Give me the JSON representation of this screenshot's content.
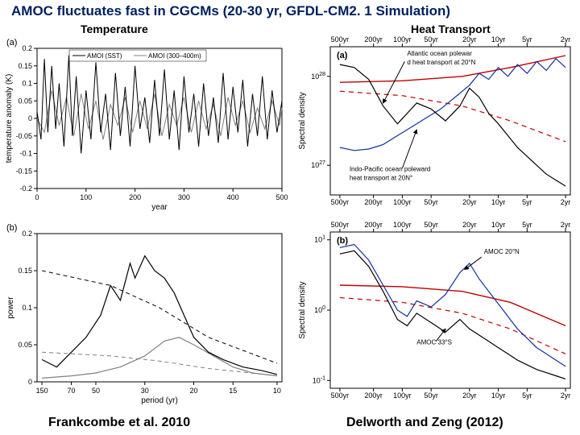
{
  "title": "AMOC fluctuates fast in CGCMs (20-30 yr, GFDL-CM2. 1 Simulation)",
  "subtitles": {
    "left": "Temperature",
    "right": "Heat Transport"
  },
  "citations": {
    "left": "Frankcombe et al. 2010",
    "right": "Delworth and Zeng (2012)"
  },
  "colors": {
    "title": "#002060",
    "axis": "#000000",
    "grid": "#cccccc",
    "black_line": "#000000",
    "gray_line": "#808080",
    "blue_line": "#1030a0",
    "red_line": "#c00000",
    "red_dash": "#c00000",
    "bg": "#ffffff"
  },
  "panel_a_tl": {
    "letter": "(a)",
    "xlabel": "year",
    "ylabel": "temperature anomaly (K)",
    "xlim": [
      0,
      500
    ],
    "xtick_step": 100,
    "ylim": [
      -0.2,
      0.2
    ],
    "yticks": [
      -0.2,
      -0.15,
      -0.1,
      -0.05,
      0,
      0.05,
      0.1,
      0.15,
      0.2
    ],
    "legend": [
      "AMOI (SST)",
      "AMOI (300–400m)"
    ],
    "series_black": [
      [
        0,
        0.02
      ],
      [
        8,
        -0.06
      ],
      [
        15,
        0.17
      ],
      [
        22,
        -0.04
      ],
      [
        30,
        0.15
      ],
      [
        38,
        -0.03
      ],
      [
        45,
        0.1
      ],
      [
        55,
        -0.08
      ],
      [
        65,
        0.18
      ],
      [
        72,
        -0.05
      ],
      [
        80,
        0.12
      ],
      [
        90,
        -0.1
      ],
      [
        100,
        0.08
      ],
      [
        110,
        -0.06
      ],
      [
        120,
        0.16
      ],
      [
        130,
        -0.04
      ],
      [
        140,
        0.07
      ],
      [
        150,
        -0.09
      ],
      [
        160,
        0.13
      ],
      [
        170,
        -0.05
      ],
      [
        180,
        0.09
      ],
      [
        190,
        -0.08
      ],
      [
        200,
        0.15
      ],
      [
        210,
        -0.03
      ],
      [
        220,
        0.06
      ],
      [
        230,
        -0.07
      ],
      [
        240,
        0.11
      ],
      [
        250,
        -0.05
      ],
      [
        260,
        0.14
      ],
      [
        270,
        -0.06
      ],
      [
        280,
        0.08
      ],
      [
        290,
        -0.09
      ],
      [
        300,
        0.12
      ],
      [
        310,
        -0.04
      ],
      [
        320,
        0.07
      ],
      [
        330,
        -0.08
      ],
      [
        340,
        0.1
      ],
      [
        350,
        -0.05
      ],
      [
        360,
        0.06
      ],
      [
        370,
        -0.07
      ],
      [
        380,
        0.13
      ],
      [
        390,
        -0.06
      ],
      [
        400,
        0.09
      ],
      [
        410,
        -0.04
      ],
      [
        420,
        0.11
      ],
      [
        430,
        -0.08
      ],
      [
        440,
        0.07
      ],
      [
        450,
        -0.05
      ],
      [
        460,
        0.12
      ],
      [
        470,
        -0.06
      ],
      [
        480,
        0.08
      ],
      [
        490,
        -0.04
      ],
      [
        500,
        0.05
      ]
    ],
    "series_gray": [
      [
        0,
        0.0
      ],
      [
        15,
        -0.04
      ],
      [
        30,
        0.08
      ],
      [
        45,
        -0.02
      ],
      [
        60,
        0.06
      ],
      [
        75,
        -0.05
      ],
      [
        90,
        0.07
      ],
      [
        105,
        -0.03
      ],
      [
        120,
        0.05
      ],
      [
        135,
        -0.06
      ],
      [
        150,
        0.04
      ],
      [
        165,
        -0.02
      ],
      [
        180,
        0.06
      ],
      [
        195,
        -0.04
      ],
      [
        210,
        0.05
      ],
      [
        225,
        -0.03
      ],
      [
        240,
        0.07
      ],
      [
        255,
        -0.05
      ],
      [
        270,
        0.04
      ],
      [
        285,
        -0.02
      ],
      [
        300,
        0.06
      ],
      [
        315,
        -0.04
      ],
      [
        330,
        0.05
      ],
      [
        345,
        -0.03
      ],
      [
        360,
        0.04
      ],
      [
        375,
        -0.05
      ],
      [
        390,
        0.06
      ],
      [
        405,
        -0.02
      ],
      [
        420,
        0.05
      ],
      [
        435,
        -0.04
      ],
      [
        450,
        0.03
      ],
      [
        465,
        -0.03
      ],
      [
        480,
        0.05
      ],
      [
        495,
        -0.02
      ],
      [
        500,
        0.03
      ]
    ]
  },
  "panel_b_bl": {
    "letter": "(b)",
    "xlabel": "period (yr)",
    "ylabel": "power",
    "xticks_pos": [
      0.02,
      0.14,
      0.24,
      0.44,
      0.64,
      0.8,
      0.98
    ],
    "xticks_lab": [
      "150",
      "70",
      "50",
      "30",
      "20",
      "15",
      "10"
    ],
    "ylim": [
      0,
      0.2
    ],
    "ytick_step": 0.05,
    "series_black": [
      [
        0.02,
        0.03
      ],
      [
        0.08,
        0.02
      ],
      [
        0.14,
        0.04
      ],
      [
        0.2,
        0.06
      ],
      [
        0.26,
        0.09
      ],
      [
        0.3,
        0.13
      ],
      [
        0.34,
        0.11
      ],
      [
        0.38,
        0.16
      ],
      [
        0.4,
        0.14
      ],
      [
        0.44,
        0.17
      ],
      [
        0.48,
        0.15
      ],
      [
        0.52,
        0.14
      ],
      [
        0.56,
        0.12
      ],
      [
        0.6,
        0.09
      ],
      [
        0.64,
        0.06
      ],
      [
        0.7,
        0.04
      ],
      [
        0.76,
        0.03
      ],
      [
        0.84,
        0.02
      ],
      [
        0.92,
        0.015
      ],
      [
        0.98,
        0.01
      ]
    ],
    "series_gray": [
      [
        0.02,
        0.005
      ],
      [
        0.14,
        0.008
      ],
      [
        0.24,
        0.012
      ],
      [
        0.34,
        0.02
      ],
      [
        0.44,
        0.035
      ],
      [
        0.52,
        0.055
      ],
      [
        0.58,
        0.06
      ],
      [
        0.64,
        0.05
      ],
      [
        0.72,
        0.035
      ],
      [
        0.8,
        0.02
      ],
      [
        0.88,
        0.012
      ],
      [
        0.98,
        0.008
      ]
    ],
    "dash_black": [
      [
        0.02,
        0.15
      ],
      [
        0.3,
        0.13
      ],
      [
        0.5,
        0.1
      ],
      [
        0.7,
        0.06
      ],
      [
        0.98,
        0.025
      ]
    ],
    "dash_gray": [
      [
        0.02,
        0.04
      ],
      [
        0.3,
        0.035
      ],
      [
        0.5,
        0.028
      ],
      [
        0.7,
        0.018
      ],
      [
        0.98,
        0.008
      ]
    ]
  },
  "panel_a_tr": {
    "letter": "(a)",
    "ylabel": "Spectral density",
    "xticks_lab": [
      "500yr",
      "200yr",
      "100yr",
      "50yr",
      "20yr",
      "10yr",
      "5yr",
      "2yr"
    ],
    "xticks_pos": [
      0.04,
      0.18,
      0.3,
      0.42,
      0.58,
      0.7,
      0.82,
      0.98
    ],
    "yticks_lab": [
      "10^27",
      "10^28"
    ],
    "yticks_pos": [
      0.2,
      0.8
    ],
    "annot1": "Atlantic ocean poleward heat transport at 20°N",
    "annot2": "Indo-Pacific ocean poleward heat transport at 20N°",
    "series_black": [
      [
        0.04,
        0.88
      ],
      [
        0.1,
        0.86
      ],
      [
        0.16,
        0.78
      ],
      [
        0.22,
        0.6
      ],
      [
        0.28,
        0.48
      ],
      [
        0.32,
        0.55
      ],
      [
        0.36,
        0.62
      ],
      [
        0.42,
        0.58
      ],
      [
        0.48,
        0.5
      ],
      [
        0.54,
        0.6
      ],
      [
        0.58,
        0.72
      ],
      [
        0.62,
        0.66
      ],
      [
        0.66,
        0.55
      ],
      [
        0.7,
        0.48
      ],
      [
        0.74,
        0.4
      ],
      [
        0.78,
        0.32
      ],
      [
        0.82,
        0.26
      ],
      [
        0.86,
        0.2
      ],
      [
        0.9,
        0.14
      ],
      [
        0.94,
        0.1
      ],
      [
        0.98,
        0.06
      ]
    ],
    "series_blue": [
      [
        0.04,
        0.32
      ],
      [
        0.1,
        0.3
      ],
      [
        0.16,
        0.31
      ],
      [
        0.22,
        0.34
      ],
      [
        0.28,
        0.4
      ],
      [
        0.34,
        0.46
      ],
      [
        0.4,
        0.52
      ],
      [
        0.46,
        0.58
      ],
      [
        0.52,
        0.66
      ],
      [
        0.58,
        0.74
      ],
      [
        0.62,
        0.82
      ],
      [
        0.66,
        0.78
      ],
      [
        0.7,
        0.86
      ],
      [
        0.74,
        0.8
      ],
      [
        0.78,
        0.88
      ],
      [
        0.82,
        0.82
      ],
      [
        0.86,
        0.9
      ],
      [
        0.9,
        0.84
      ],
      [
        0.94,
        0.92
      ],
      [
        0.98,
        0.86
      ]
    ],
    "series_red": [
      [
        0.04,
        0.76
      ],
      [
        0.3,
        0.77
      ],
      [
        0.55,
        0.8
      ],
      [
        0.75,
        0.86
      ],
      [
        0.98,
        0.94
      ]
    ],
    "series_red_dash": [
      [
        0.04,
        0.7
      ],
      [
        0.3,
        0.67
      ],
      [
        0.55,
        0.6
      ],
      [
        0.75,
        0.5
      ],
      [
        0.98,
        0.36
      ]
    ]
  },
  "panel_b_br": {
    "letter": "(b)",
    "ylabel": "Spectral density",
    "xticks_lab": [
      "500yr",
      "200yr",
      "100yr",
      "50yr",
      "20yr",
      "10yr",
      "5yr",
      "2yr"
    ],
    "xticks_pos": [
      0.04,
      0.18,
      0.3,
      0.42,
      0.58,
      0.7,
      0.82,
      0.98
    ],
    "yticks_lab": [
      "10^-1",
      "10^0",
      "10^1"
    ],
    "yticks_pos": [
      0.05,
      0.5,
      0.95
    ],
    "annot1": "AMOC 20°N",
    "annot2": "AMOC 33°S",
    "series_black": [
      [
        0.04,
        0.86
      ],
      [
        0.1,
        0.88
      ],
      [
        0.16,
        0.78
      ],
      [
        0.22,
        0.62
      ],
      [
        0.28,
        0.44
      ],
      [
        0.32,
        0.4
      ],
      [
        0.36,
        0.48
      ],
      [
        0.42,
        0.42
      ],
      [
        0.48,
        0.36
      ],
      [
        0.54,
        0.44
      ],
      [
        0.58,
        0.38
      ],
      [
        0.62,
        0.34
      ],
      [
        0.66,
        0.3
      ],
      [
        0.7,
        0.26
      ],
      [
        0.74,
        0.22
      ],
      [
        0.78,
        0.18
      ],
      [
        0.82,
        0.15
      ],
      [
        0.86,
        0.12
      ],
      [
        0.9,
        0.1
      ],
      [
        0.94,
        0.08
      ],
      [
        0.98,
        0.06
      ]
    ],
    "series_blue": [
      [
        0.04,
        0.9
      ],
      [
        0.1,
        0.92
      ],
      [
        0.16,
        0.82
      ],
      [
        0.22,
        0.66
      ],
      [
        0.28,
        0.5
      ],
      [
        0.32,
        0.46
      ],
      [
        0.36,
        0.56
      ],
      [
        0.42,
        0.52
      ],
      [
        0.48,
        0.6
      ],
      [
        0.54,
        0.74
      ],
      [
        0.58,
        0.8
      ],
      [
        0.62,
        0.7
      ],
      [
        0.66,
        0.62
      ],
      [
        0.7,
        0.54
      ],
      [
        0.74,
        0.46
      ],
      [
        0.78,
        0.38
      ],
      [
        0.82,
        0.32
      ],
      [
        0.86,
        0.26
      ],
      [
        0.9,
        0.22
      ],
      [
        0.94,
        0.18
      ],
      [
        0.98,
        0.14
      ]
    ],
    "series_red": [
      [
        0.04,
        0.66
      ],
      [
        0.3,
        0.65
      ],
      [
        0.55,
        0.62
      ],
      [
        0.75,
        0.55
      ],
      [
        0.98,
        0.4
      ]
    ],
    "series_red_dash": [
      [
        0.04,
        0.58
      ],
      [
        0.3,
        0.55
      ],
      [
        0.55,
        0.48
      ],
      [
        0.75,
        0.38
      ],
      [
        0.98,
        0.22
      ]
    ]
  }
}
